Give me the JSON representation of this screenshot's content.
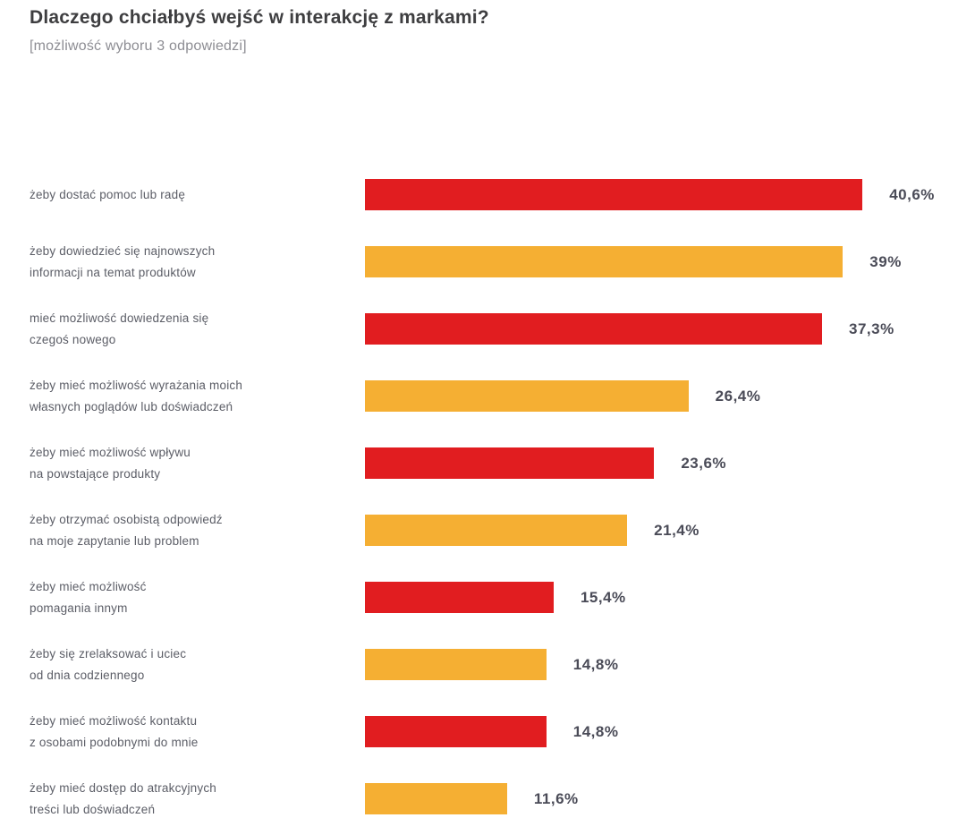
{
  "header": {
    "title": "Dlaczego chciałbyś wejść w interakcję z markami?",
    "subtitle": "[możliwość wyboru 3 odpowiedzi]"
  },
  "colors": {
    "red": "#e11d20",
    "orange": "#f5af33",
    "title_text": "#3e3e40",
    "subtitle_text": "#8d8d93",
    "category_text": "#5b5d66",
    "value_text": "#4a4b57",
    "background": "#ffffff"
  },
  "chart_data": {
    "type": "bar",
    "orientation": "horizontal",
    "title": "Dlaczego chciałbyś wejść w interakcję z markami?",
    "subtitle": "[możliwość wyboru 3 odpowiedzi]",
    "unit": "%",
    "decimal_separator": ",",
    "xlim": [
      0,
      42
    ],
    "grid": false,
    "legend": "none",
    "categories": [
      "żeby dostać pomoc lub radę",
      "żeby dowiedzieć się najnowszych informacji na temat produktów",
      "mieć możliwość dowiedzenia się czegoś nowego",
      "żeby mieć możliwość wyrażania moich własnych poglądów lub doświadczeń",
      "żeby mieć możliwość wpływu na powstające produkty",
      "żeby otrzymać osobistą odpowiedź na moje zapytanie lub problem",
      "żeby mieć możliwość pomagania innym",
      "żeby się zrelaksować i uciec od dnia codziennego",
      "żeby mieć możliwość kontaktu z osobami podobnymi do mnie",
      "żeby mieć dostęp do atrakcyjnych treści lub doświadczeń"
    ],
    "values": [
      40.6,
      39,
      37.3,
      26.4,
      23.6,
      21.4,
      15.4,
      14.8,
      14.8,
      11.6
    ],
    "bars": [
      {
        "label_lines": [
          "żeby dostać pomoc lub radę"
        ],
        "value": 40.6,
        "value_label": "40,6%",
        "color": "red"
      },
      {
        "label_lines": [
          "żeby dowiedzieć się najnowszych",
          "informacji na temat produktów"
        ],
        "value": 39,
        "value_label": "39%",
        "color": "orange"
      },
      {
        "label_lines": [
          "mieć możliwość dowiedzenia się",
          "czegoś nowego"
        ],
        "value": 37.3,
        "value_label": "37,3%",
        "color": "red"
      },
      {
        "label_lines": [
          "żeby mieć możliwość wyrażania moich",
          "własnych poglądów lub doświadczeń"
        ],
        "value": 26.4,
        "value_label": "26,4%",
        "color": "orange"
      },
      {
        "label_lines": [
          "żeby mieć możliwość wpływu",
          "na powstające produkty"
        ],
        "value": 23.6,
        "value_label": "23,6%",
        "color": "red"
      },
      {
        "label_lines": [
          "żeby otrzymać osobistą odpowiedź",
          "na moje zapytanie lub problem"
        ],
        "value": 21.4,
        "value_label": "21,4%",
        "color": "orange"
      },
      {
        "label_lines": [
          "żeby mieć możliwość",
          "pomagania innym"
        ],
        "value": 15.4,
        "value_label": "15,4%",
        "color": "red"
      },
      {
        "label_lines": [
          "żeby się zrelaksować i uciec",
          "od dnia codziennego"
        ],
        "value": 14.8,
        "value_label": "14,8%",
        "color": "orange"
      },
      {
        "label_lines": [
          "żeby mieć możliwość kontaktu",
          "z osobami podobnymi do mnie"
        ],
        "value": 14.8,
        "value_label": "14,8%",
        "color": "red"
      },
      {
        "label_lines": [
          "żeby mieć dostęp do atrakcyjnych",
          "treści lub doświadczeń"
        ],
        "value": 11.6,
        "value_label": "11,6%",
        "color": "orange"
      }
    ]
  }
}
